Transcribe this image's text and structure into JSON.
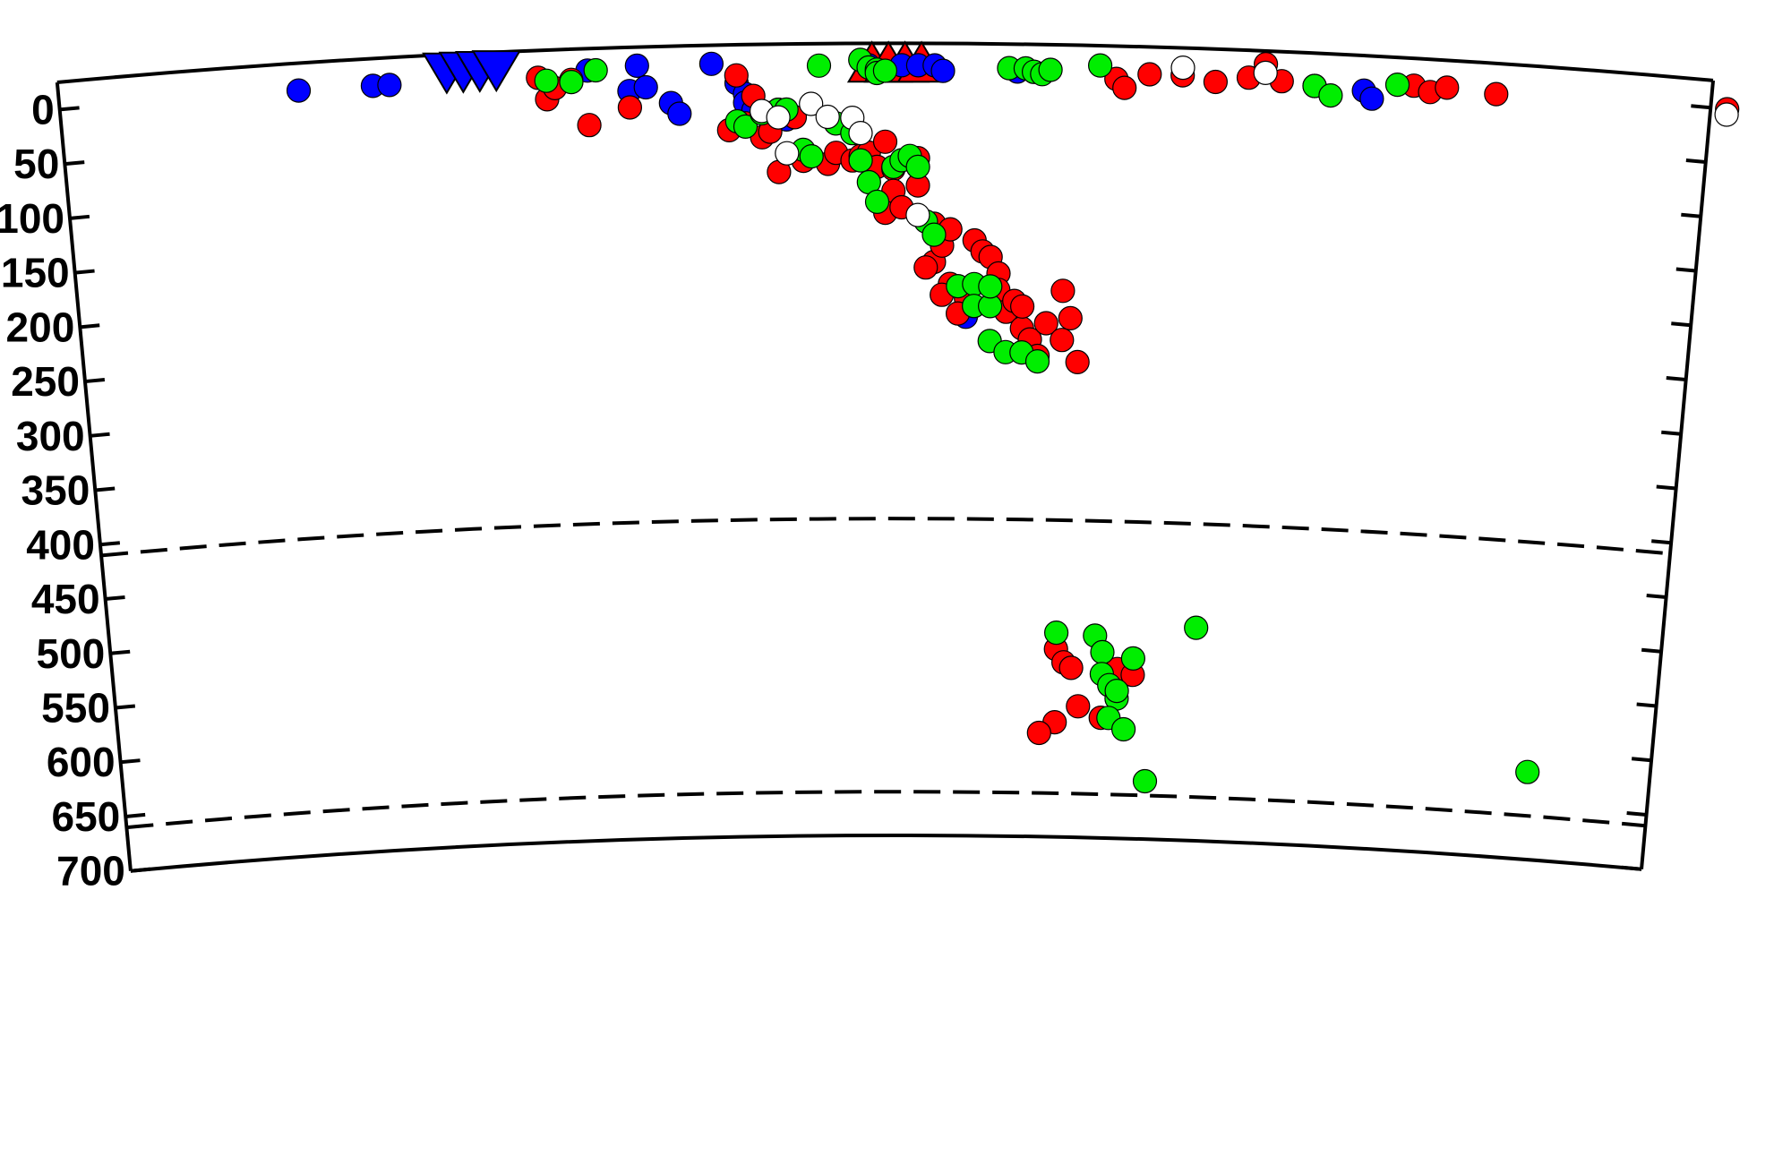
{
  "chart_data": {
    "type": "scatter",
    "title": "",
    "xlabel": "",
    "ylabel": "",
    "ylim": [
      0,
      700
    ],
    "xlim": [
      0,
      100
    ],
    "y_ticks": [
      0,
      50,
      100,
      150,
      200,
      250,
      300,
      350,
      400,
      450,
      500,
      550,
      600,
      650,
      700
    ],
    "discontinuities": [
      410,
      660
    ],
    "colors": {
      "blue": "#0000ff",
      "red": "#ff0000",
      "green": "#00ee00",
      "white": "#ffffff"
    },
    "stations": [
      {
        "symbol": "triangle-down",
        "color": "#0000ff",
        "x": [
          23.5,
          24.5,
          25.5,
          26.5
        ],
        "y": -8
      },
      {
        "symbol": "triangle-up",
        "color": "#ff0000",
        "x": [
          49.2,
          50.2,
          51.2,
          52.2
        ],
        "y": -8
      }
    ],
    "series": [
      {
        "color": "#0000ff",
        "points": [
          [
            14.5,
            0
          ],
          [
            19,
            0
          ],
          [
            20,
            0
          ],
          [
            32,
            -5
          ],
          [
            35,
            -8
          ],
          [
            34.5,
            15
          ],
          [
            35.5,
            12
          ],
          [
            37,
            27
          ],
          [
            37.5,
            37
          ],
          [
            39.5,
            -8
          ],
          [
            41,
            10
          ],
          [
            41.5,
            20
          ],
          [
            41.5,
            28
          ],
          [
            42,
            35
          ],
          [
            43,
            38
          ],
          [
            44,
            44
          ],
          [
            47,
            48
          ],
          [
            49,
            -5
          ],
          [
            51,
            -5
          ],
          [
            52,
            -5
          ],
          [
            53,
            -5
          ],
          [
            53.5,
            0
          ],
          [
            58,
            0
          ],
          [
            59,
            0
          ],
          [
            79,
            7
          ],
          [
            79.5,
            14
          ],
          [
            55,
            225
          ]
        ]
      },
      {
        "color": "#ff0000",
        "points": [
          [
            29,
            0
          ],
          [
            29.5,
            20
          ],
          [
            30,
            10
          ],
          [
            31,
            3
          ],
          [
            32,
            45
          ],
          [
            34.5,
            30
          ],
          [
            40.5,
            53
          ],
          [
            41,
            3
          ],
          [
            41.5,
            47
          ],
          [
            42,
            22
          ],
          [
            42.5,
            60
          ],
          [
            43,
            55
          ],
          [
            43.5,
            35
          ],
          [
            43.5,
            92
          ],
          [
            44.5,
            42
          ],
          [
            45,
            82
          ],
          [
            46.5,
            85
          ],
          [
            47,
            75
          ],
          [
            48,
            82
          ],
          [
            48.5,
            78
          ],
          [
            49,
            75
          ],
          [
            49.5,
            88
          ],
          [
            50,
            65
          ],
          [
            50.5,
            90
          ],
          [
            50.5,
            110
          ],
          [
            50,
            130
          ],
          [
            51,
            125
          ],
          [
            52,
            105
          ],
          [
            52,
            80
          ],
          [
            53,
            140
          ],
          [
            53,
            175
          ],
          [
            53.5,
            160
          ],
          [
            54,
            145
          ],
          [
            55.5,
            155
          ],
          [
            56,
            165
          ],
          [
            56.5,
            170
          ],
          [
            57,
            185
          ],
          [
            57,
            200
          ],
          [
            57.5,
            220
          ],
          [
            58,
            210
          ],
          [
            58.5,
            235
          ],
          [
            58.5,
            215
          ],
          [
            59,
            245
          ],
          [
            59.5,
            260
          ],
          [
            60,
            230
          ],
          [
            61,
            200
          ],
          [
            61.5,
            225
          ],
          [
            61,
            245
          ],
          [
            62,
            265
          ],
          [
            52.5,
            180
          ],
          [
            54,
            195
          ],
          [
            53.5,
            205
          ],
          [
            55,
            208
          ],
          [
            55.5,
            215
          ],
          [
            54.5,
            222
          ],
          [
            64,
            5
          ],
          [
            64.5,
            13
          ],
          [
            66,
            0
          ],
          [
            68,
            0
          ],
          [
            70,
            5
          ],
          [
            72,
            0
          ],
          [
            73,
            -13
          ],
          [
            74,
            2
          ],
          [
            76,
            5
          ],
          [
            82,
            0
          ],
          [
            83,
            5
          ],
          [
            84,
            0
          ],
          [
            87,
            3
          ],
          [
            101,
            0
          ],
          [
            61,
            528
          ],
          [
            61.5,
            540
          ],
          [
            62,
            545
          ],
          [
            62.5,
            580
          ],
          [
            61,
            595
          ],
          [
            60,
            605
          ],
          [
            65,
            545
          ],
          [
            66,
            550
          ],
          [
            64,
            590
          ]
        ]
      },
      {
        "color": "#00ee00",
        "points": [
          [
            29.5,
            3
          ],
          [
            31,
            5
          ],
          [
            32.5,
            -5
          ],
          [
            41,
            45
          ],
          [
            41.5,
            50
          ],
          [
            42.5,
            38
          ],
          [
            43.5,
            35
          ],
          [
            44,
            35
          ],
          [
            45,
            72
          ],
          [
            45.5,
            78
          ],
          [
            47,
            48
          ],
          [
            48,
            57
          ],
          [
            48.5,
            82
          ],
          [
            49,
            102
          ],
          [
            49.5,
            120
          ],
          [
            50.5,
            88
          ],
          [
            51,
            82
          ],
          [
            51.5,
            78
          ],
          [
            52,
            88
          ],
          [
            52.5,
            138
          ],
          [
            46,
            -5
          ],
          [
            48.5,
            -10
          ],
          [
            49,
            -3
          ],
          [
            49.5,
            -1
          ],
          [
            49.5,
            2
          ],
          [
            50,
            0
          ],
          [
            57.5,
            -3
          ],
          [
            58.5,
            -3
          ],
          [
            59,
            0
          ],
          [
            59.5,
            2
          ],
          [
            60,
            -2
          ],
          [
            63,
            -7
          ],
          [
            76,
            5
          ],
          [
            77,
            13
          ],
          [
            81,
            0
          ],
          [
            53,
            150
          ],
          [
            54.5,
            197
          ],
          [
            55.5,
            195
          ],
          [
            55.5,
            215
          ],
          [
            56.5,
            215
          ],
          [
            56.5,
            197
          ],
          [
            56.5,
            247
          ],
          [
            57.5,
            257
          ],
          [
            58.5,
            257
          ],
          [
            59.5,
            265
          ],
          [
            61,
            513
          ],
          [
            63.5,
            515
          ],
          [
            64,
            530
          ],
          [
            64,
            550
          ],
          [
            64.5,
            560
          ],
          [
            65,
            572
          ],
          [
            65,
            565
          ],
          [
            64.5,
            590
          ],
          [
            65.5,
            600
          ],
          [
            70,
            505
          ],
          [
            92,
            620
          ],
          [
            67,
            647
          ],
          [
            66,
            535
          ]
        ]
      },
      {
        "color": "#ffffff",
        "points": [
          [
            42.5,
            36
          ],
          [
            43.5,
            42
          ],
          [
            44,
            75
          ],
          [
            45.5,
            30
          ],
          [
            46.5,
            42
          ],
          [
            48,
            43
          ],
          [
            48.5,
            57
          ],
          [
            52,
            132
          ],
          [
            68,
            -7
          ],
          [
            73,
            -5
          ],
          [
            101,
            5
          ]
        ]
      }
    ]
  }
}
